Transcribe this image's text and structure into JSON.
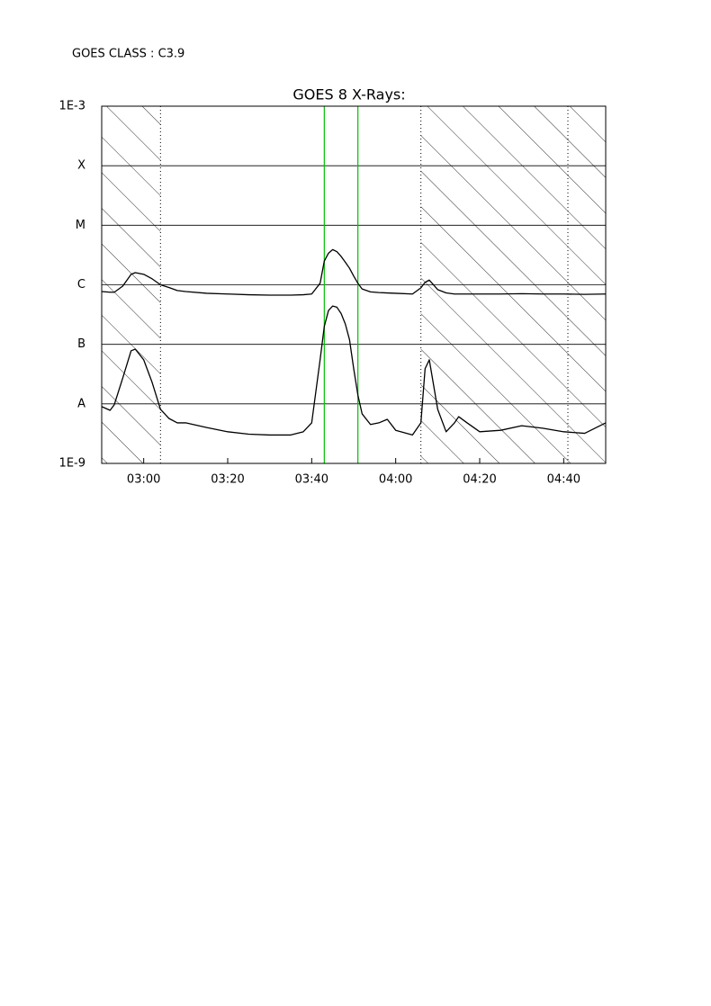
{
  "chart_data": {
    "type": "line",
    "annotation": "GOES CLASS : C3.9",
    "title": "GOES 8 X-Rays:",
    "log_y": true,
    "grid": true,
    "x": [
      "02:50",
      "02:52",
      "02:53",
      "02:55",
      "02:57",
      "02:58",
      "03:00",
      "03:02",
      "03:04",
      "03:06",
      "03:08",
      "03:10",
      "03:15",
      "03:20",
      "03:25",
      "03:30",
      "03:35",
      "03:38",
      "03:40",
      "03:42",
      "03:43",
      "03:44",
      "03:45",
      "03:46",
      "03:47",
      "03:48",
      "03:49",
      "03:50",
      "03:51",
      "03:52",
      "03:54",
      "03:56",
      "03:58",
      "04:00",
      "04:04",
      "04:06",
      "04:07",
      "04:08",
      "04:10",
      "04:12",
      "04:14",
      "04:15",
      "04:17",
      "04:20",
      "04:25",
      "04:30",
      "04:35",
      "04:40",
      "04:45",
      "04:50"
    ],
    "series": [
      {
        "color": "#000000",
        "values": [
          7.7e-07,
          7.5e-07,
          7.5e-07,
          9.5e-07,
          1.5e-06,
          1.6e-06,
          1.5e-06,
          1.26e-06,
          1e-06,
          9e-07,
          8e-07,
          7.7e-07,
          7.2e-07,
          7e-07,
          6.8e-07,
          6.7e-07,
          6.7e-07,
          6.8e-07,
          7e-07,
          1.06e-06,
          2.5e-06,
          3.4e-06,
          3.9e-06,
          3.6e-06,
          3e-06,
          2.4e-06,
          1.9e-06,
          1.4e-06,
          1.06e-06,
          8.5e-07,
          7.6e-07,
          7.4e-07,
          7.3e-07,
          7.2e-07,
          7e-07,
          8.9e-07,
          1.1e-06,
          1.2e-06,
          8.3e-07,
          7.3e-07,
          7e-07,
          7e-07,
          7e-07,
          7e-07,
          7e-07,
          7.1e-07,
          7e-07,
          7e-07,
          6.9e-07,
          7e-07
        ]
      },
      {
        "color": "#000000",
        "values": [
          9e-09,
          7.8e-09,
          9.7e-09,
          2.7e-08,
          7.8e-08,
          8.3e-08,
          5.5e-08,
          2.3e-08,
          8.1e-09,
          5.7e-09,
          4.8e-09,
          4.8e-09,
          4e-09,
          3.4e-09,
          3.1e-09,
          3e-09,
          3e-09,
          3.4e-09,
          4.8e-09,
          5.5e-08,
          2e-07,
          3.7e-07,
          4.4e-07,
          4.2e-07,
          3.3e-07,
          2.2e-07,
          1.2e-07,
          3.9e-08,
          1.4e-08,
          6.8e-09,
          4.5e-09,
          4.8e-09,
          5.5e-09,
          3.6e-09,
          3e-09,
          4.8e-09,
          3.9e-08,
          5.5e-08,
          8.1e-09,
          3.4e-09,
          4.8e-09,
          6.1e-09,
          4.8e-09,
          3.4e-09,
          3.6e-09,
          4.3e-09,
          3.9e-09,
          3.4e-09,
          3.2e-09,
          4.8e-09
        ]
      }
    ],
    "xlim": [
      "02:50",
      "04:50"
    ],
    "xticks": [
      "03:00",
      "03:20",
      "03:40",
      "04:00",
      "04:20",
      "04:40"
    ],
    "ylim": [
      1e-09,
      0.001
    ],
    "yticks": [
      {
        "value": 0.001,
        "label": "1E-3"
      },
      {
        "value": 0.0001,
        "label": "X"
      },
      {
        "value": 1e-05,
        "label": "M"
      },
      {
        "value": 1e-06,
        "label": "C"
      },
      {
        "value": 1e-07,
        "label": "B"
      },
      {
        "value": 1e-08,
        "label": "A"
      },
      {
        "value": 1e-09,
        "label": "1E-9"
      }
    ],
    "shaded": [
      [
        "02:50",
        "03:04"
      ],
      [
        "04:06",
        "04:50"
      ]
    ],
    "dotted_lines": [
      "03:04",
      "04:06",
      "04:41"
    ],
    "flare_lines": {
      "color": "#00c000",
      "x": [
        "03:43",
        "03:51"
      ]
    }
  }
}
